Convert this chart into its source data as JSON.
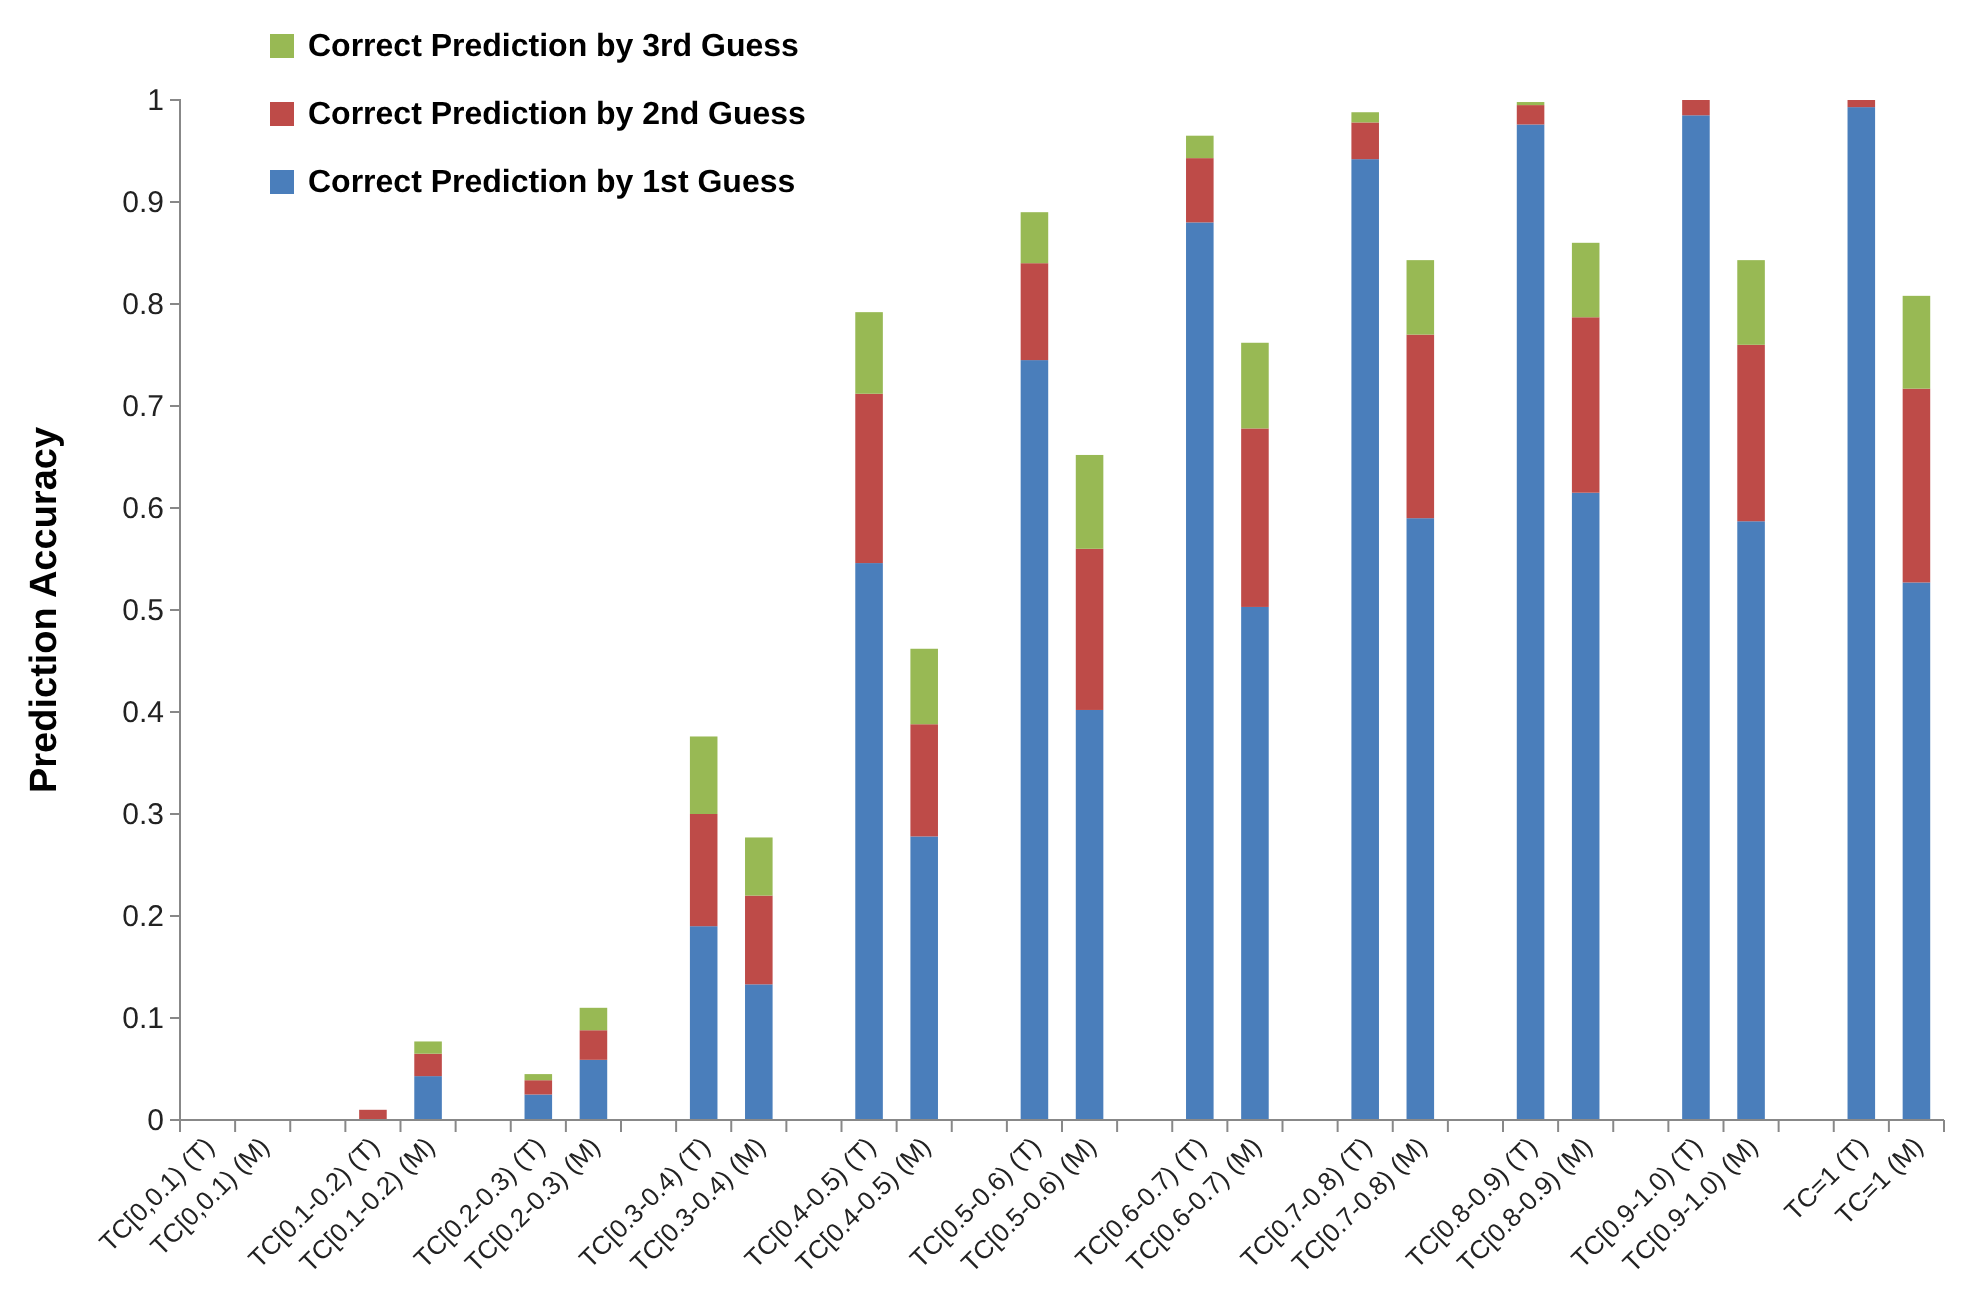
{
  "chart_data": {
    "type": "bar",
    "stacked": true,
    "ylabel": "Prediction  Accuracy",
    "categories": [
      "TC[0,0.1) (T)",
      "TC[0,0.1) (M)",
      null,
      "TC[0.1-0.2) (T)",
      "TC[0.1-0.2) (M)",
      null,
      "TC[0.2-0.3) (T)",
      "TC[0.2-0.3) (M)",
      null,
      "TC[0.3-0.4) (T)",
      "TC[0.3-0.4) (M)",
      null,
      "TC[0.4-0.5) (T)",
      "TC[0.4-0.5) (M)",
      null,
      "TC[0.5-0.6) (T)",
      "TC[0.5-0.6) (M)",
      null,
      "TC[0.6-0.7) (T)",
      "TC[0.6-0.7) (M)",
      null,
      "TC[0.7-0.8) (T)",
      "TC[0.7-0.8) (M)",
      null,
      "TC[0.8-0.9) (T)",
      "TC[0.8-0.9) (M)",
      null,
      "TC[0.9-1.0) (T)",
      "TC[0.9-1.0) (M)",
      null,
      "TC=1 (T)",
      "TC=1 (M)"
    ],
    "series": [
      {
        "name": "Correct Prediction by 1st Guess",
        "color": "#4a7ebb",
        "values": [
          0,
          0,
          null,
          0,
          0.043,
          null,
          0.025,
          0.059,
          null,
          0.19,
          0.133,
          null,
          0.546,
          0.278,
          null,
          0.745,
          0.402,
          null,
          0.88,
          0.503,
          null,
          0.942,
          0.59,
          null,
          0.976,
          0.615,
          null,
          0.985,
          0.587,
          null,
          0.993,
          0.527
        ]
      },
      {
        "name": "Correct Prediction by 2nd Guess",
        "color": "#be4b48",
        "values": [
          0,
          0,
          null,
          0.01,
          0.022,
          null,
          0.014,
          0.029,
          null,
          0.11,
          0.087,
          null,
          0.166,
          0.11,
          null,
          0.095,
          0.158,
          null,
          0.063,
          0.175,
          null,
          0.036,
          0.18,
          null,
          0.019,
          0.172,
          null,
          0.015,
          0.173,
          null,
          0.007,
          0.19
        ]
      },
      {
        "name": "Correct Prediction by 3rd Guess",
        "color": "#98b954",
        "values": [
          0,
          0,
          null,
          0,
          0.012,
          null,
          0.006,
          0.022,
          null,
          0.076,
          0.057,
          null,
          0.08,
          0.074,
          null,
          0.05,
          0.092,
          null,
          0.022,
          0.084,
          null,
          0.01,
          0.073,
          null,
          0.003,
          0.073,
          null,
          0,
          0.083,
          null,
          0,
          0.091
        ]
      }
    ],
    "ylim": [
      0,
      1
    ],
    "yticks": [
      0,
      0.1,
      0.2,
      0.3,
      0.4,
      0.5,
      0.6,
      0.7,
      0.8,
      0.9,
      1
    ],
    "legend": "top left"
  }
}
